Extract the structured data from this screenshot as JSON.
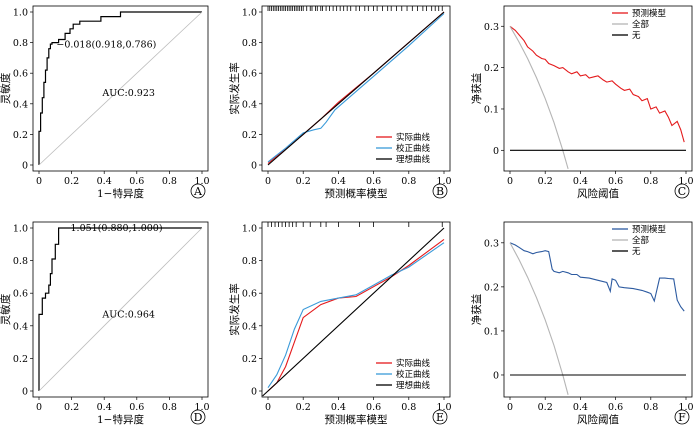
{
  "chart_data": [
    {
      "panel": "A",
      "type": "line",
      "xlabel": "1−特异度",
      "ylabel": "灵敏度",
      "xlim": [
        0,
        1
      ],
      "ylim": [
        0,
        1
      ],
      "xticks": [
        "0",
        "0.2",
        "0.4",
        "0.6",
        "0.8",
        "1.0"
      ],
      "yticks": [
        "0",
        "0.2",
        "0.4",
        "0.6",
        "0.8",
        "1.0"
      ],
      "annotations": {
        "point": "−0.018(0.918,0.786)",
        "auc": "AUC:0.923"
      },
      "cutoff_point": {
        "x": 0.082,
        "y": 0.786
      },
      "series": [
        {
          "name": "",
          "x": [
            0,
            0,
            0.01,
            0.01,
            0.02,
            0.02,
            0.03,
            0.03,
            0.04,
            0.04,
            0.05,
            0.05,
            0.06,
            0.06,
            0.07,
            0.07,
            0.08,
            0.08,
            0.12,
            0.12,
            0.16,
            0.16,
            0.19,
            0.19,
            0.21,
            0.21,
            0.25,
            0.25,
            0.38,
            0.38,
            0.5,
            0.5,
            1.0
          ],
          "y": [
            0,
            0.22,
            0.22,
            0.34,
            0.34,
            0.44,
            0.44,
            0.54,
            0.54,
            0.62,
            0.62,
            0.7,
            0.7,
            0.76,
            0.76,
            0.79,
            0.79,
            0.8,
            0.8,
            0.82,
            0.82,
            0.86,
            0.86,
            0.89,
            0.89,
            0.92,
            0.92,
            0.94,
            0.94,
            0.97,
            0.97,
            1.0,
            1.0
          ]
        },
        {
          "name": "",
          "x": [
            0,
            1
          ],
          "y": [
            0,
            1
          ]
        }
      ]
    },
    {
      "panel": "B",
      "type": "line",
      "xlabel": "预测概率模型",
      "ylabel": "实际发生率",
      "xlim": [
        0,
        1
      ],
      "ylim": [
        0,
        1
      ],
      "xticks": [
        "0",
        "0.2",
        "0.4",
        "0.6",
        "0.8",
        "1.0"
      ],
      "yticks": [
        "0",
        "0.2",
        "0.4",
        "0.6",
        "0.8",
        "1.0"
      ],
      "legend_position": "bottom-right",
      "rug": [
        0.0,
        0.01,
        0.02,
        0.03,
        0.04,
        0.05,
        0.06,
        0.07,
        0.08,
        0.09,
        0.1,
        0.11,
        0.12,
        0.13,
        0.14,
        0.15,
        0.16,
        0.17,
        0.18,
        0.19,
        0.2,
        0.22,
        0.24,
        0.25,
        0.27,
        0.28,
        0.3,
        0.31,
        0.33,
        0.35,
        0.37,
        0.39,
        0.41,
        0.43,
        0.45,
        0.47,
        0.5,
        0.52,
        0.55,
        0.57,
        0.6,
        0.62,
        0.65,
        0.68,
        0.7,
        0.73,
        0.76,
        0.79,
        0.82,
        0.85,
        0.88,
        0.9,
        0.93,
        0.95,
        0.97,
        0.99
      ],
      "series": [
        {
          "name": "实际曲线",
          "color": "#e41a1c",
          "x": [
            0,
            0.2,
            0.3,
            0.4,
            0.6,
            0.8,
            1.0
          ],
          "y": [
            0.01,
            0.2,
            0.3,
            0.41,
            0.6,
            0.8,
            1.0
          ]
        },
        {
          "name": "校正曲线",
          "color": "#3a9ad9",
          "x": [
            0,
            0.1,
            0.2,
            0.26,
            0.3,
            0.33,
            0.38,
            0.45,
            0.6,
            0.8,
            1.0
          ],
          "y": [
            0.02,
            0.11,
            0.21,
            0.23,
            0.24,
            0.28,
            0.36,
            0.43,
            0.58,
            0.78,
            0.99
          ]
        },
        {
          "name": "理想曲线",
          "color": "#000000",
          "x": [
            0,
            1
          ],
          "y": [
            0,
            1
          ]
        }
      ]
    },
    {
      "panel": "C",
      "type": "line",
      "xlabel": "风险阈值",
      "ylabel": "净获益",
      "xlim": [
        0,
        1
      ],
      "ylim": [
        -0.05,
        0.32
      ],
      "xticks": [
        "0",
        "0.2",
        "0.4",
        "0.6",
        "0.8",
        "1.0"
      ],
      "yticks": [
        "0",
        "0.1",
        "0.2",
        "0.3"
      ],
      "legend_position": "top-right",
      "series": [
        {
          "name": "预测模型",
          "color": "#e41a1c",
          "x": [
            0,
            0.03,
            0.05,
            0.08,
            0.1,
            0.13,
            0.15,
            0.18,
            0.2,
            0.22,
            0.25,
            0.28,
            0.3,
            0.33,
            0.35,
            0.38,
            0.4,
            0.43,
            0.45,
            0.48,
            0.5,
            0.53,
            0.55,
            0.58,
            0.6,
            0.63,
            0.65,
            0.68,
            0.7,
            0.73,
            0.75,
            0.78,
            0.8,
            0.83,
            0.85,
            0.88,
            0.9,
            0.92,
            0.95,
            0.97,
            0.99
          ],
          "y": [
            0.3,
            0.29,
            0.28,
            0.265,
            0.25,
            0.24,
            0.23,
            0.222,
            0.22,
            0.21,
            0.205,
            0.198,
            0.2,
            0.19,
            0.185,
            0.19,
            0.18,
            0.183,
            0.175,
            0.178,
            0.18,
            0.17,
            0.165,
            0.168,
            0.16,
            0.15,
            0.145,
            0.148,
            0.135,
            0.13,
            0.12,
            0.125,
            0.1,
            0.105,
            0.09,
            0.095,
            0.08,
            0.06,
            0.07,
            0.05,
            0.02
          ]
        },
        {
          "name": "全部",
          "color": "#b5b5b5",
          "x": [
            0,
            0.05,
            0.1,
            0.15,
            0.2,
            0.25,
            0.3,
            0.33
          ],
          "y": [
            0.3,
            0.263,
            0.222,
            0.176,
            0.125,
            0.067,
            0.0,
            -0.045
          ]
        },
        {
          "name": "无",
          "color": "#000000",
          "x": [
            0,
            1
          ],
          "y": [
            0,
            0
          ]
        }
      ]
    },
    {
      "panel": "D",
      "type": "line",
      "xlabel": "1−特异度",
      "ylabel": "灵敏度",
      "xlim": [
        0,
        1
      ],
      "ylim": [
        0,
        1
      ],
      "xticks": [
        "0",
        "0.2",
        "0.4",
        "0.6",
        "0.8",
        "1.0"
      ],
      "yticks": [
        "0",
        "0.2",
        "0.4",
        "0.6",
        "0.8",
        "1.0"
      ],
      "annotations": {
        "point": "−1.051(0.880,1.000)",
        "auc": "AUC:0.964"
      },
      "cutoff_point": {
        "x": 0.12,
        "y": 1.0
      },
      "series": [
        {
          "name": "",
          "x": [
            0,
            0,
            0.02,
            0.02,
            0.04,
            0.04,
            0.06,
            0.06,
            0.07,
            0.07,
            0.08,
            0.08,
            0.1,
            0.1,
            0.12,
            0.12,
            1.0
          ],
          "y": [
            0,
            0.47,
            0.47,
            0.57,
            0.57,
            0.6,
            0.6,
            0.65,
            0.65,
            0.72,
            0.72,
            0.81,
            0.81,
            0.9,
            0.9,
            1.0,
            1.0
          ]
        },
        {
          "name": "",
          "x": [
            0,
            1
          ],
          "y": [
            0,
            1
          ]
        }
      ]
    },
    {
      "panel": "E",
      "type": "line",
      "xlabel": "预测概率模型",
      "ylabel": "实际发生率",
      "xlim": [
        0,
        1
      ],
      "ylim": [
        0,
        1
      ],
      "xticks": [
        "0",
        "0.2",
        "0.4",
        "0.6",
        "0.8",
        "1.0"
      ],
      "yticks": [
        "0",
        "0.2",
        "0.4",
        "0.6",
        "0.8",
        "1.0"
      ],
      "legend_position": "bottom-right",
      "rug": [
        0.0,
        0.02,
        0.04,
        0.06,
        0.08,
        0.1,
        0.12,
        0.14,
        0.16,
        0.2,
        0.24,
        0.3,
        0.33,
        0.4,
        0.52,
        0.6,
        0.8,
        0.99
      ],
      "series": [
        {
          "name": "实际曲线",
          "color": "#e41a1c",
          "x": [
            0,
            0.05,
            0.1,
            0.15,
            0.2,
            0.3,
            0.4,
            0.5,
            0.6,
            0.7,
            0.8,
            1.0
          ],
          "y": [
            0.0,
            0.05,
            0.15,
            0.3,
            0.45,
            0.53,
            0.57,
            0.58,
            0.64,
            0.7,
            0.77,
            0.93
          ]
        },
        {
          "name": "校正曲线",
          "color": "#3a9ad9",
          "x": [
            0,
            0.05,
            0.1,
            0.15,
            0.2,
            0.3,
            0.4,
            0.5,
            0.6,
            0.7,
            0.8,
            1.0
          ],
          "y": [
            0.02,
            0.1,
            0.22,
            0.38,
            0.5,
            0.55,
            0.57,
            0.59,
            0.65,
            0.71,
            0.76,
            0.91
          ]
        },
        {
          "name": "理想曲线",
          "color": "#000000",
          "x": [
            -0.03,
            1
          ],
          "y": [
            -0.03,
            1
          ]
        }
      ]
    },
    {
      "panel": "F",
      "type": "line",
      "xlabel": "风险阈值",
      "ylabel": "净获益",
      "xlim": [
        0,
        1
      ],
      "ylim": [
        -0.05,
        0.32
      ],
      "xticks": [
        "0",
        "0.2",
        "0.4",
        "0.6",
        "0.8",
        "1.0"
      ],
      "yticks": [
        "0",
        "0.1",
        "0.2",
        "0.3"
      ],
      "legend_position": "top-right",
      "series": [
        {
          "name": "预测模型",
          "color": "#2c5aa0",
          "x": [
            0,
            0.03,
            0.05,
            0.08,
            0.1,
            0.13,
            0.15,
            0.18,
            0.2,
            0.22,
            0.24,
            0.25,
            0.28,
            0.3,
            0.33,
            0.35,
            0.38,
            0.4,
            0.45,
            0.5,
            0.55,
            0.57,
            0.58,
            0.6,
            0.62,
            0.65,
            0.7,
            0.75,
            0.78,
            0.8,
            0.82,
            0.85,
            0.88,
            0.9,
            0.93,
            0.95,
            0.97,
            0.99
          ],
          "y": [
            0.3,
            0.295,
            0.29,
            0.282,
            0.28,
            0.275,
            0.278,
            0.28,
            0.282,
            0.28,
            0.24,
            0.235,
            0.232,
            0.235,
            0.232,
            0.228,
            0.228,
            0.222,
            0.22,
            0.215,
            0.21,
            0.19,
            0.218,
            0.215,
            0.2,
            0.198,
            0.196,
            0.192,
            0.188,
            0.185,
            0.168,
            0.22,
            0.22,
            0.219,
            0.218,
            0.17,
            0.155,
            0.145
          ]
        },
        {
          "name": "全部",
          "color": "#b5b5b5",
          "x": [
            0,
            0.05,
            0.1,
            0.15,
            0.2,
            0.25,
            0.3,
            0.33
          ],
          "y": [
            0.3,
            0.263,
            0.222,
            0.176,
            0.125,
            0.067,
            0.0,
            -0.045
          ]
        },
        {
          "name": "无",
          "color": "#000000",
          "x": [
            0,
            1
          ],
          "y": [
            0,
            0
          ]
        }
      ]
    }
  ]
}
